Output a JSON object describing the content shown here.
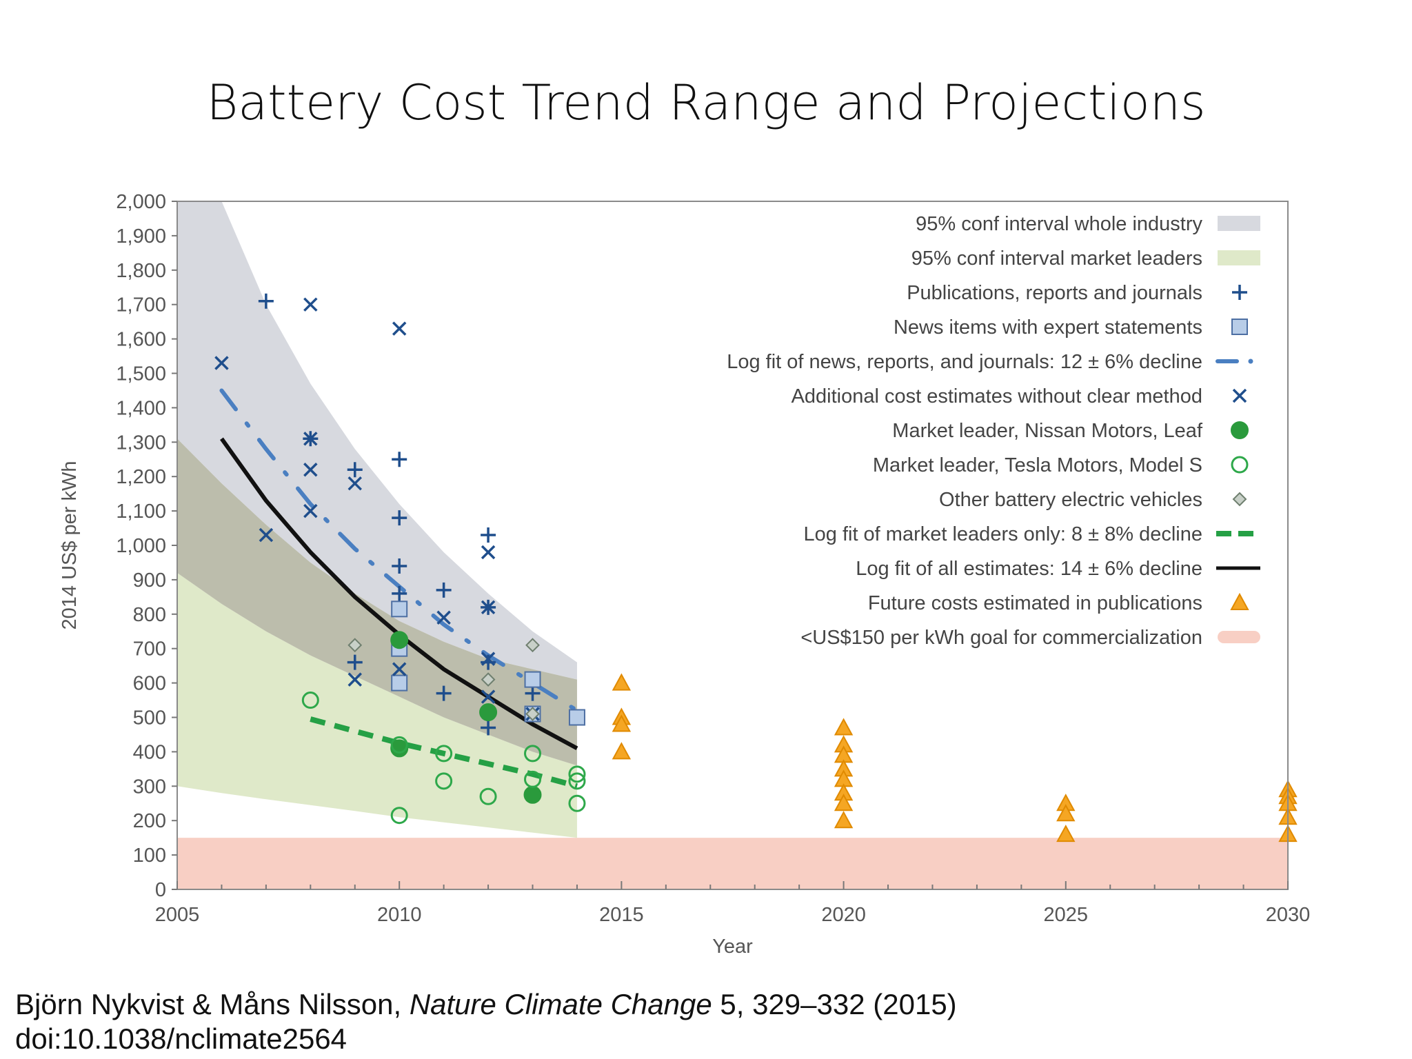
{
  "slide": {
    "title": "Battery Cost Trend Range and Projections",
    "citation_authors": "Björn Nykvist & Måns Nilsson, ",
    "citation_journal": "Nature Climate Change",
    "citation_rest": " 5, 329–332 (2015)",
    "citation_doi": "doi:10.1038/nclimate2564"
  },
  "chart_data": {
    "type": "scatter",
    "xlabel": "Year",
    "ylabel": "2014 US$ per kWh",
    "xlim": [
      2005,
      2030
    ],
    "ylim": [
      0,
      2000
    ],
    "x_ticks": [
      2005,
      2010,
      2015,
      2020,
      2025,
      2030
    ],
    "y_ticks": [
      0,
      100,
      200,
      300,
      400,
      500,
      600,
      700,
      800,
      900,
      1000,
      1100,
      1200,
      1300,
      1400,
      1500,
      1600,
      1700,
      1800,
      1900,
      2000
    ],
    "y_tick_labels": [
      "0",
      "100",
      "200",
      "300",
      "400",
      "500",
      "600",
      "700",
      "800",
      "900",
      "1,000",
      "1,100",
      "1,200",
      "1,300",
      "1,400",
      "1,500",
      "1,600",
      "1,700",
      "1,800",
      "1,900",
      "2,000"
    ],
    "grid": false,
    "legend_position": "top-right",
    "colors": {
      "band_industry": "#d7d9df",
      "band_leaders": "#dfe9c9",
      "band_overlap": "#b5b6a3",
      "publication": "#1f4e8c",
      "news_fill": "#b8cde8",
      "news_stroke": "#4d6fa3",
      "news_fit": "#4a7fc1",
      "nissan": "#2a9a3c",
      "tesla": "#2ea84a",
      "other_fill": "#c8d0c8",
      "other_stroke": "#6f7f6f",
      "leaders_fit": "#25a045",
      "all_fit": "#111111",
      "future": "#f5a623",
      "future_stroke": "#e08a00",
      "goal": "#f8cfc4"
    },
    "legend": [
      {
        "label": "95% conf interval whole industry",
        "marker": "band-industry"
      },
      {
        "label": "95% conf interval market leaders",
        "marker": "band-leaders"
      },
      {
        "label": "Publications, reports and journals",
        "marker": "plus"
      },
      {
        "label": "News items with expert statements",
        "marker": "square"
      },
      {
        "label": "Log fit of news, reports, and journals: 12 ± 6% decline",
        "marker": "dashdot"
      },
      {
        "label": "Additional cost estimates without clear method",
        "marker": "cross"
      },
      {
        "label": "Market leader, Nissan Motors, Leaf",
        "marker": "filled-circle"
      },
      {
        "label": "Market leader, Tesla Motors, Model S",
        "marker": "open-circle"
      },
      {
        "label": "Other battery electric vehicles",
        "marker": "diamond"
      },
      {
        "label": "Log fit of market leaders only: 8 ± 8% decline",
        "marker": "dashed"
      },
      {
        "label": "Log fit of all estimates: 14 ± 6% decline",
        "marker": "solid"
      },
      {
        "label": "Future costs estimated in publications",
        "marker": "triangle"
      },
      {
        "label": "<US$150 per kWh goal for commercialization",
        "marker": "goal-band"
      }
    ],
    "goal_band": [
      0,
      150
    ],
    "band_industry": {
      "x": [
        2005,
        2006,
        2007,
        2008,
        2009,
        2010,
        2011,
        2012,
        2013,
        2014
      ],
      "upper": [
        2000,
        2000,
        1700,
        1470,
        1280,
        1120,
        980,
        860,
        750,
        660
      ],
      "lower": [
        1310,
        1180,
        1060,
        950,
        860,
        780,
        720,
        670,
        640,
        610
      ]
    },
    "band_leaders": {
      "x": [
        2005,
        2006,
        2007,
        2008,
        2009,
        2010,
        2011,
        2012,
        2013,
        2014
      ],
      "upper": [
        920,
        830,
        750,
        680,
        620,
        560,
        500,
        450,
        400,
        360
      ],
      "lower": [
        300,
        280,
        262,
        245,
        228,
        210,
        195,
        180,
        165,
        150
      ]
    },
    "series": [
      {
        "name": "Publications, reports and journals",
        "marker": "plus",
        "points": [
          [
            2007,
            1710
          ],
          [
            2008,
            1310
          ],
          [
            2009,
            1220
          ],
          [
            2009,
            660
          ],
          [
            2010,
            1250
          ],
          [
            2010,
            1080
          ],
          [
            2010,
            940
          ],
          [
            2010,
            860
          ],
          [
            2011,
            870
          ],
          [
            2011,
            570
          ],
          [
            2012,
            1030
          ],
          [
            2012,
            820
          ],
          [
            2012,
            660
          ],
          [
            2012,
            470
          ],
          [
            2013,
            570
          ]
        ]
      },
      {
        "name": "News items with expert statements",
        "marker": "square",
        "points": [
          [
            2010,
            815
          ],
          [
            2010,
            700
          ],
          [
            2010,
            600
          ],
          [
            2013,
            610
          ],
          [
            2013,
            510
          ],
          [
            2014,
            500
          ]
        ]
      },
      {
        "name": "Additional cost estimates without clear method",
        "marker": "cross",
        "points": [
          [
            2006,
            1530
          ],
          [
            2007,
            1030
          ],
          [
            2008,
            1700
          ],
          [
            2008,
            1310
          ],
          [
            2008,
            1220
          ],
          [
            2008,
            1100
          ],
          [
            2009,
            1180
          ],
          [
            2009,
            610
          ],
          [
            2010,
            1630
          ],
          [
            2010,
            640
          ],
          [
            2011,
            790
          ],
          [
            2012,
            980
          ],
          [
            2012,
            820
          ],
          [
            2012,
            670
          ],
          [
            2012,
            560
          ],
          [
            2013,
            510
          ]
        ]
      },
      {
        "name": "Market leader, Nissan Motors, Leaf",
        "marker": "filled-circle",
        "points": [
          [
            2010,
            725
          ],
          [
            2010,
            410
          ],
          [
            2012,
            515
          ],
          [
            2013,
            275
          ]
        ]
      },
      {
        "name": "Market leader, Tesla Motors, Model S",
        "marker": "open-circle",
        "points": [
          [
            2008,
            550
          ],
          [
            2010,
            420
          ],
          [
            2010,
            215
          ],
          [
            2011,
            395
          ],
          [
            2011,
            315
          ],
          [
            2012,
            270
          ],
          [
            2013,
            395
          ],
          [
            2013,
            320
          ],
          [
            2014,
            335
          ],
          [
            2014,
            315
          ],
          [
            2014,
            250
          ]
        ]
      },
      {
        "name": "Other battery electric vehicles",
        "marker": "diamond",
        "points": [
          [
            2009,
            710
          ],
          [
            2012,
            610
          ],
          [
            2013,
            710
          ],
          [
            2013,
            510
          ]
        ]
      },
      {
        "name": "Future costs estimated in publications",
        "marker": "triangle",
        "points": [
          [
            2015,
            600
          ],
          [
            2015,
            500
          ],
          [
            2015,
            480
          ],
          [
            2015,
            400
          ],
          [
            2020,
            470
          ],
          [
            2020,
            420
          ],
          [
            2020,
            390
          ],
          [
            2020,
            350
          ],
          [
            2020,
            320
          ],
          [
            2020,
            280
          ],
          [
            2020,
            250
          ],
          [
            2020,
            200
          ],
          [
            2025,
            250
          ],
          [
            2025,
            220
          ],
          [
            2025,
            160
          ],
          [
            2030,
            290
          ],
          [
            2030,
            270
          ],
          [
            2030,
            250
          ],
          [
            2030,
            210
          ],
          [
            2030,
            160
          ]
        ]
      },
      {
        "name": "Log fit of news, reports, and journals: 12 ± 6% decline",
        "marker": "dashdot",
        "points": [
          [
            2006,
            1450
          ],
          [
            2007,
            1280
          ],
          [
            2008,
            1120
          ],
          [
            2009,
            990
          ],
          [
            2010,
            880
          ],
          [
            2011,
            770
          ],
          [
            2012,
            680
          ],
          [
            2013,
            600
          ],
          [
            2014,
            520
          ]
        ]
      },
      {
        "name": "Log fit of market leaders only: 8 ± 8% decline",
        "marker": "dashed",
        "points": [
          [
            2008,
            495
          ],
          [
            2009,
            460
          ],
          [
            2010,
            425
          ],
          [
            2011,
            395
          ],
          [
            2012,
            365
          ],
          [
            2013,
            335
          ],
          [
            2014,
            300
          ]
        ]
      },
      {
        "name": "Log fit of all estimates: 14 ± 6% decline",
        "marker": "solid",
        "points": [
          [
            2006,
            1310
          ],
          [
            2007,
            1130
          ],
          [
            2008,
            980
          ],
          [
            2009,
            850
          ],
          [
            2010,
            740
          ],
          [
            2011,
            640
          ],
          [
            2012,
            560
          ],
          [
            2013,
            480
          ],
          [
            2014,
            410
          ]
        ]
      }
    ]
  }
}
